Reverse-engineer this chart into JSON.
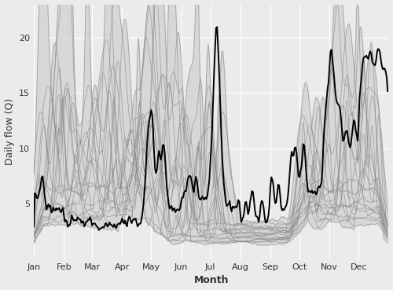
{
  "title": "",
  "xlabel": "Month",
  "ylabel": "Daily flow (Q)",
  "bg_color": "#EBEBEB",
  "grid_color": "#FFFFFF",
  "black_line_color": "#000000",
  "ylim": [
    0,
    23
  ],
  "yticks": [
    5,
    10,
    15,
    20
  ],
  "months": [
    "Jan",
    "Feb",
    "Mar",
    "Apr",
    "May",
    "Jun",
    "Jul",
    "Aug",
    "Sep",
    "Oct",
    "Nov",
    "Dec"
  ],
  "month_days": [
    31,
    29,
    31,
    30,
    31,
    30,
    31,
    31,
    30,
    31,
    30,
    31
  ]
}
